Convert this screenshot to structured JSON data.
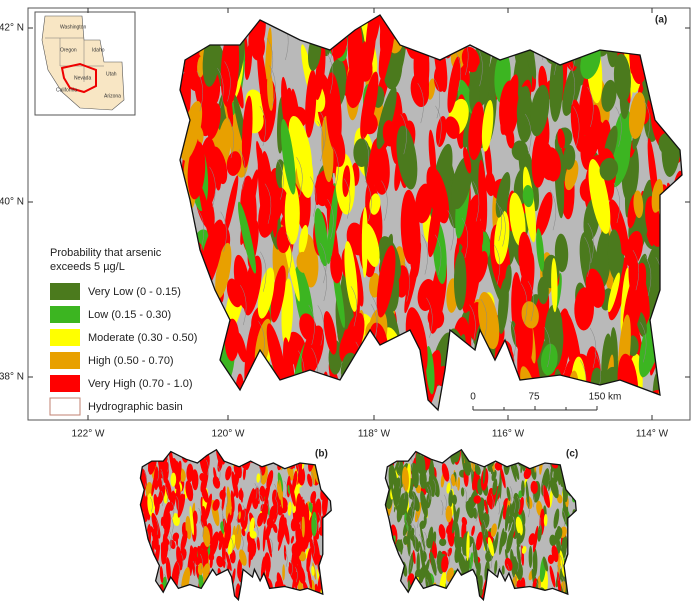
{
  "map": {
    "panel_labels": [
      "(a)",
      "(b)",
      "(c)"
    ],
    "latitude_labels": [
      "42° N",
      "40° N",
      "38° N"
    ],
    "longitude_labels": [
      "122° W",
      "120° W",
      "118° W",
      "116° W",
      "114° W"
    ],
    "legend": {
      "title": [
        "Probability that arsenic",
        "exceeds 5 µg/L"
      ],
      "items": [
        {
          "label": "Very Low (0 - 0.15)",
          "color": "#4b7a1d"
        },
        {
          "label": "Low (0.15 - 0.30)",
          "color": "#3cb521"
        },
        {
          "label": "Moderate (0.30 - 0.50)",
          "color": "#ffff00"
        },
        {
          "label": "High (0.50 - 0.70)",
          "color": "#e8a000"
        },
        {
          "label": "Very High (0.70 - 1.0)",
          "color": "#ff0000"
        },
        {
          "label": "Hydrographic basin",
          "color": "#ffffff"
        }
      ]
    },
    "scale_bar": [
      "0",
      "75",
      "150 km"
    ],
    "inset_labels": [
      "Washington",
      "Oregon",
      "Idaho",
      "Nevada",
      "Utah",
      "California",
      "Arizona"
    ]
  }
}
